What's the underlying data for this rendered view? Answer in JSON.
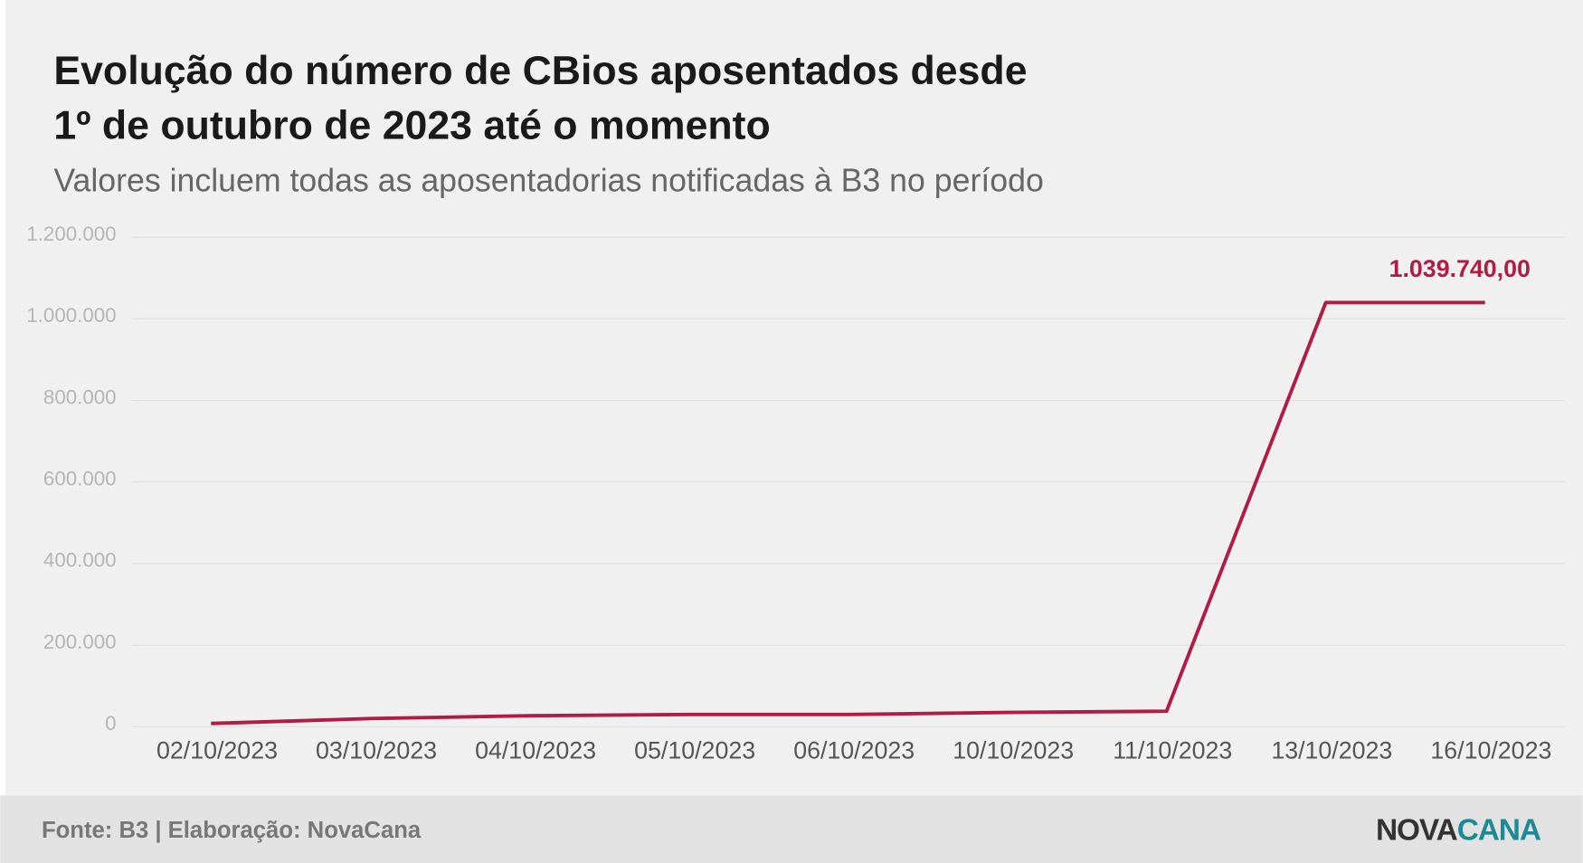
{
  "chart_data": {
    "type": "line",
    "title": [
      "Evolução do número de CBios aposentados desde",
      "1º de outubro de 2023 até o momento"
    ],
    "subtitle": "Valores incluem todas as aposentadorias notificadas à B3 no período",
    "categories": [
      "02/10/2023",
      "03/10/2023",
      "04/10/2023",
      "05/10/2023",
      "06/10/2023",
      "10/10/2023",
      "11/10/2023",
      "13/10/2023",
      "16/10/2023"
    ],
    "series": [
      {
        "name": "CBios aposentados",
        "color": "#b01c45",
        "values": [
          8000,
          20000,
          27000,
          30000,
          30000,
          35000,
          38000,
          1039740,
          1039740
        ],
        "value_labels": [
          null,
          null,
          null,
          null,
          null,
          null,
          null,
          null,
          "1.039.740,00"
        ]
      }
    ],
    "ylim": [
      0,
      1200000
    ],
    "yticks": [
      0,
      {
        "value": 200000,
        "label": "200.000"
      },
      {
        "value": 400000,
        "label": "400.000"
      },
      {
        "value": 600000,
        "label": "600.000"
      },
      {
        "value": 800000,
        "label": "800.000"
      },
      {
        "value": 1000000,
        "label": "1.000.000"
      },
      {
        "value": 1200000,
        "label": "1.200.000"
      }
    ],
    "grid": true
  },
  "footer": {
    "source": "Fonte: B3 | Elaboração: NovaCana",
    "logo": [
      "NOVA",
      "CANA"
    ]
  }
}
